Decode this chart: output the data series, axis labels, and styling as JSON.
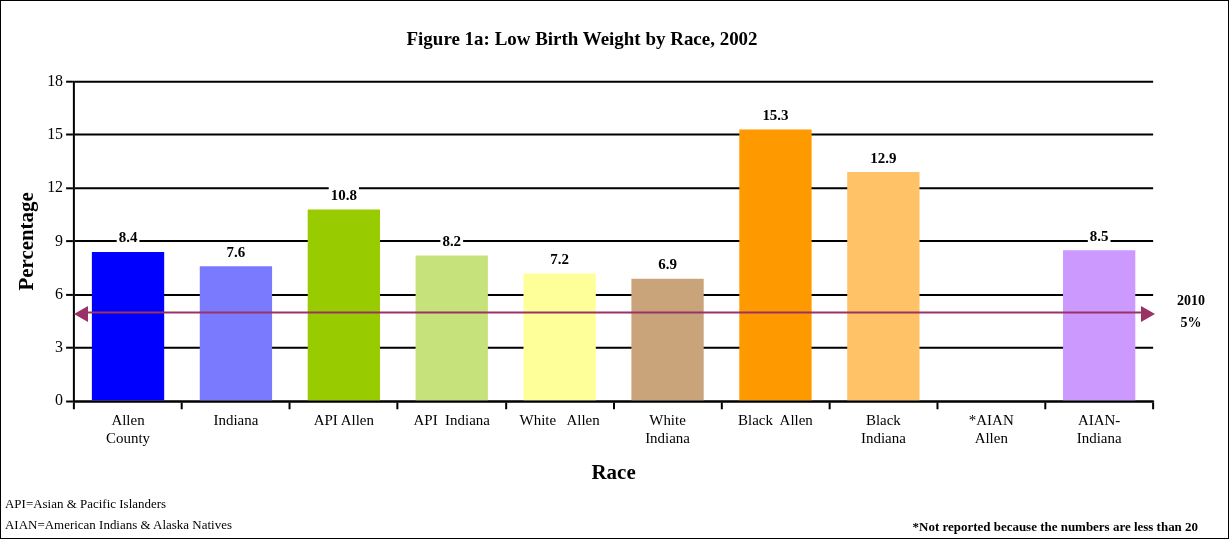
{
  "chart_data": {
    "type": "bar",
    "title": "Figure 1a: Low Birth Weight by Race, 2002",
    "xlabel": "Race",
    "ylabel": "Percentage",
    "categories": [
      "Allen\nCounty",
      "Indiana",
      "API Allen",
      "API  Indiana",
      "White   Allen",
      "White\nIndiana",
      "Black  Allen",
      "Black\nIndiana",
      "*AIAN\nAllen",
      "AIAN-\nIndiana"
    ],
    "values": [
      8.4,
      7.6,
      10.8,
      8.2,
      7.2,
      6.9,
      15.3,
      12.9,
      null,
      8.5
    ],
    "colors": [
      "#0000ff",
      "#7a7aff",
      "#99cc00",
      "#c6e27a",
      "#ffff99",
      "#c9a37a",
      "#ff9900",
      "#ffc266",
      "#cc99ff",
      "#cc99ff"
    ],
    "ylim": [
      0,
      18
    ],
    "yticks": [
      0,
      3,
      6,
      9,
      12,
      15,
      18
    ],
    "grid": "y",
    "data_labels": true,
    "legend": false,
    "ref_lines": [
      {
        "axis": "y",
        "value": 5,
        "label": "2010\n5%",
        "color": "#993366"
      }
    ],
    "annotations": [
      "API=Asian & Pacific Islanders",
      "AIAN=American Indians & Alaska Natives",
      "*Not reported because the numbers are less than 20"
    ]
  }
}
